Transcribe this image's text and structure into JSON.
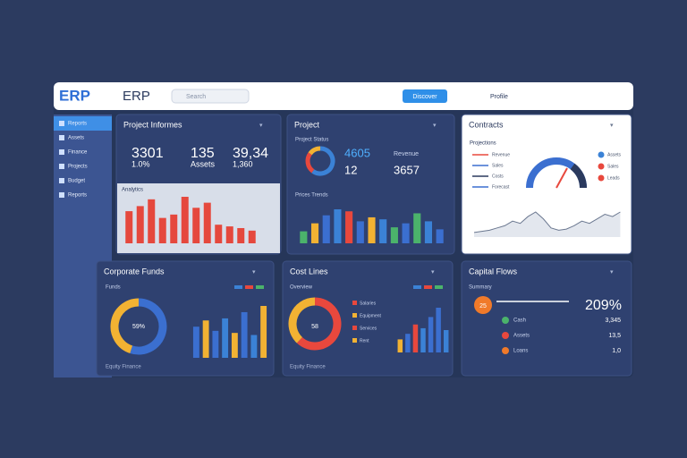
{
  "header": {
    "logo": "ERP",
    "title": "ERP",
    "search": "Search",
    "button": "Discover",
    "user": "Profile"
  },
  "sidebar": {
    "items": [
      "Reports",
      "Assets",
      "Finance",
      "Projects",
      "Budget",
      "Reports"
    ]
  },
  "panels": [
    {
      "title": "Project Informes",
      "stats": [
        "3301",
        "1.0%",
        "135",
        "Assets",
        "39,34",
        "1,360"
      ],
      "subtitle": "Analytics",
      "bars": [
        38,
        44,
        52,
        30,
        34,
        55,
        42,
        48,
        22,
        20,
        18,
        15
      ],
      "color": "#e5483d"
    },
    {
      "title": "Project",
      "caption": "Project Status",
      "stats": [
        "4605",
        "12",
        "Revenue",
        "3657"
      ],
      "subtitle": "Prices Trends",
      "donut": {
        "values": [
          60,
          25,
          15
        ],
        "colors": [
          "#3b82d6",
          "#e8483d",
          "#f2b233"
        ]
      },
      "bars": [
        12,
        20,
        28,
        34,
        32,
        22,
        26,
        24,
        16,
        20,
        30,
        22,
        14
      ],
      "colors": [
        "#4bb36b",
        "#f2b233",
        "#3b6fd0",
        "#3b82d6",
        "#e8483d",
        "#3b6fd0",
        "#f2b233",
        "#3b82d6",
        "#4bb36b",
        "#3b6fd0",
        "#4bb36b",
        "#3b82d6",
        "#3b6fd0"
      ]
    },
    {
      "title": "Contracts",
      "subtitle": "Projections",
      "rows": [
        "Revenue",
        "Sales",
        "Costs",
        "Forecast"
      ],
      "legend": [
        "Assets",
        "Sales",
        "Leads"
      ],
      "line": [
        4,
        5,
        6,
        8,
        10,
        14,
        12,
        18,
        22,
        16,
        8,
        6,
        7,
        10,
        14,
        12,
        16,
        20,
        18,
        22
      ]
    },
    {
      "title": "Corporate Funds",
      "subtitle": "Funds",
      "donut": {
        "center": "59%",
        "values": [
          55,
          45
        ],
        "colors": [
          "#3b6fd0",
          "#f2b233"
        ]
      },
      "bars": [
        30,
        36,
        26,
        38,
        24,
        44,
        22,
        50
      ],
      "colors": [
        "#3b6fd0",
        "#f2b233",
        "#3b6fd0",
        "#3b82d6",
        "#f2b233",
        "#3b6fd0",
        "#3b82d6",
        "#f2b233"
      ],
      "footer": "Equity Finance"
    },
    {
      "title": "Cost Lines",
      "subtitle": "Overview",
      "donut": {
        "center": "58",
        "values": [
          62,
          38
        ],
        "colors": [
          "#e8483d",
          "#f2b233"
        ]
      },
      "legend": [
        "Salaries",
        "Equipment",
        "Services",
        "Rent"
      ],
      "bars": [
        14,
        20,
        30,
        26,
        38,
        48,
        24
      ],
      "colors": [
        "#f2b233",
        "#3b6fd0",
        "#e8483d",
        "#3b82d6",
        "#3b6fd0",
        "#3b6fd0",
        "#3b82d6"
      ],
      "footer": "Equity Finance"
    },
    {
      "title": "Capital Flows",
      "subtitle": "Summary",
      "badge": "25",
      "big": "209%",
      "items": [
        {
          "label": "Cash",
          "value": "3,345"
        },
        {
          "label": "Assets",
          "value": "13,5"
        },
        {
          "label": "Loans",
          "value": "1,0"
        }
      ]
    }
  ]
}
